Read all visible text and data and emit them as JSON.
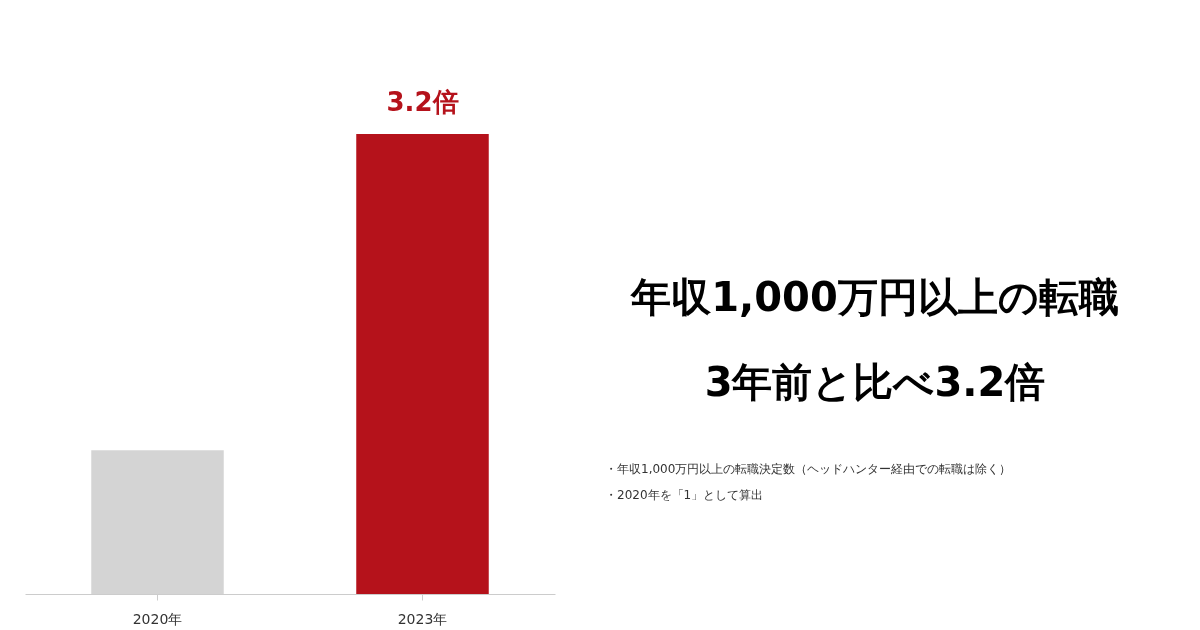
{
  "chart_data": {
    "type": "bar",
    "title": "年収1,000万円以上の転職",
    "subtitle": "3年前と比べ3.2倍",
    "categories": [
      "2020年",
      "2023年"
    ],
    "values": [
      1,
      3.2
    ],
    "colors": [
      "#d4d4d4",
      "#b5121b"
    ],
    "ylim": [
      0,
      3.2
    ],
    "tick_labels": "x",
    "value_labels": [
      null,
      "3.2倍"
    ],
    "annotations": [
      "・年収1,000万円以上の転職決定数（ヘッドハンター経由での転職は除く）",
      "・2020年を「1」として算出"
    ],
    "grid": false
  }
}
